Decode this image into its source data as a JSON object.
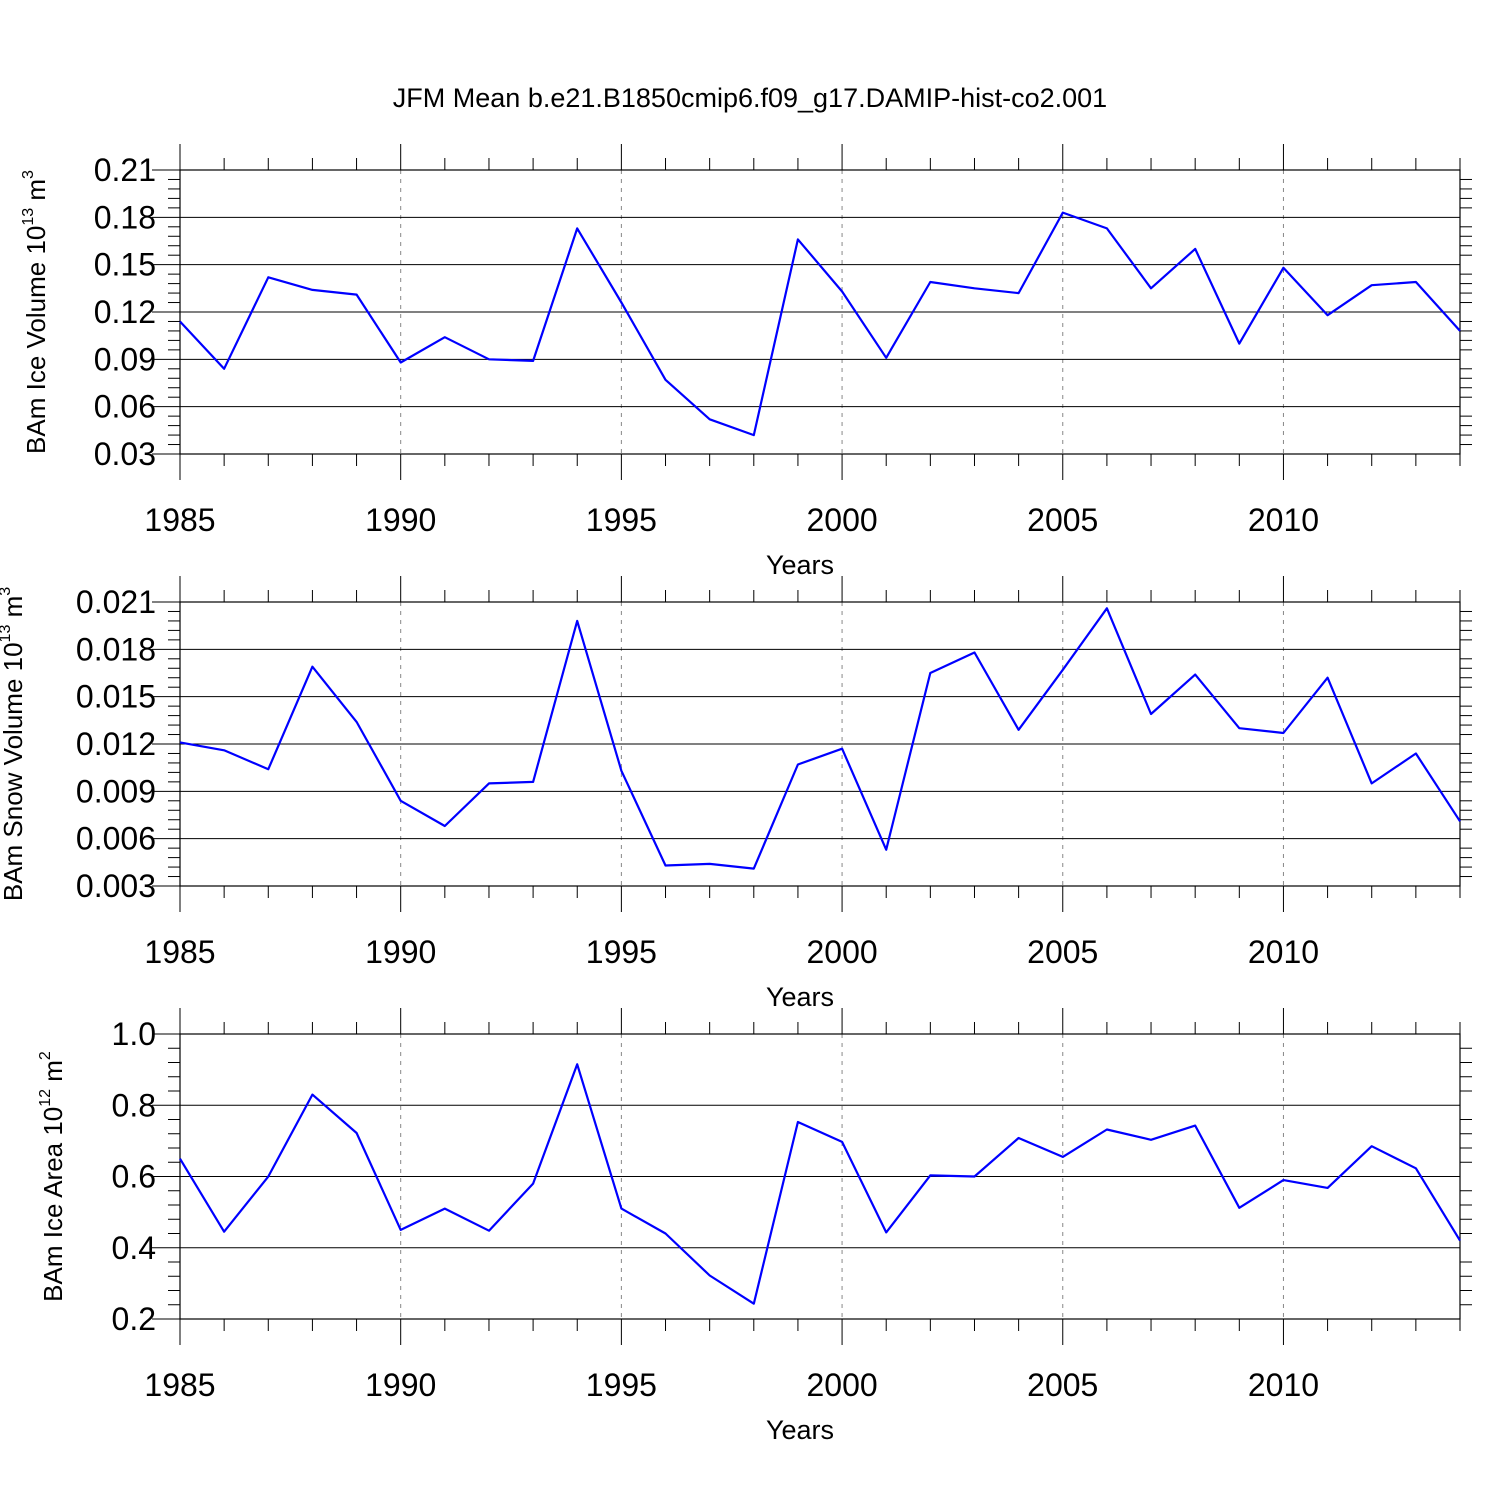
{
  "chart_data": {
    "type": "line",
    "title": "JFM Mean b.e21.B1850cmip6.f09_g17.DAMIP-hist-co2.001",
    "line_color": "#0000ff",
    "x": [
      1985,
      1986,
      1987,
      1988,
      1989,
      1990,
      1991,
      1992,
      1993,
      1994,
      1995,
      1996,
      1997,
      1998,
      1999,
      2000,
      2001,
      2002,
      2003,
      2004,
      2005,
      2006,
      2007,
      2008,
      2009,
      2010,
      2011,
      2012,
      2013,
      2014
    ],
    "xlim": [
      1985,
      2014
    ],
    "xticks": [
      1985,
      1990,
      1995,
      2000,
      2005,
      2010
    ],
    "xtick_labels": [
      "1985",
      "1990",
      "1995",
      "2000",
      "2005",
      "2010"
    ],
    "xlabel": "Years",
    "panels": [
      {
        "name": "ice-volume",
        "ylabel": {
          "base": "BAm Ice Volume 10",
          "exp": "13",
          "unit": " m",
          "unit_exp": "3"
        },
        "ylim": [
          0.03,
          0.21
        ],
        "yticks": [
          0.03,
          0.06,
          0.09,
          0.12,
          0.15,
          0.18,
          0.21
        ],
        "ytick_labels": [
          "0.03",
          "0.06",
          "0.09",
          "0.12",
          "0.15",
          "0.18",
          "0.21"
        ],
        "values": [
          0.114,
          0.084,
          0.142,
          0.134,
          0.131,
          0.088,
          0.104,
          0.09,
          0.089,
          0.173,
          0.126,
          0.077,
          0.052,
          0.042,
          0.166,
          0.133,
          0.091,
          0.139,
          0.135,
          0.132,
          0.183,
          0.173,
          0.135,
          0.16,
          0.1,
          0.148,
          0.118,
          0.137,
          0.139,
          0.108
        ]
      },
      {
        "name": "snow-volume",
        "ylabel": {
          "base": "BAm Snow Volume 10",
          "exp": "13",
          "unit": " m",
          "unit_exp": "3"
        },
        "ylim": [
          0.003,
          0.021
        ],
        "yticks": [
          0.003,
          0.006,
          0.009,
          0.012,
          0.015,
          0.018,
          0.021
        ],
        "ytick_labels": [
          "0.003",
          "0.006",
          "0.009",
          "0.012",
          "0.015",
          "0.018",
          "0.021"
        ],
        "values": [
          0.0121,
          0.0116,
          0.0104,
          0.0169,
          0.0134,
          0.0084,
          0.0068,
          0.0095,
          0.0096,
          0.0198,
          0.0103,
          0.0043,
          0.0044,
          0.0041,
          0.0107,
          0.0117,
          0.0053,
          0.0165,
          0.0178,
          0.0129,
          0.0167,
          0.0206,
          0.0139,
          0.0164,
          0.013,
          0.0127,
          0.0162,
          0.0095,
          0.0114,
          0.0071
        ]
      },
      {
        "name": "ice-area",
        "ylabel": {
          "base": "BAm Ice Area 10",
          "exp": "12",
          "unit": " m",
          "unit_exp": "2"
        },
        "ylim": [
          0.2,
          1.0
        ],
        "yticks": [
          0.2,
          0.4,
          0.6,
          0.8,
          1.0
        ],
        "ytick_labels": [
          "0.2",
          "0.4",
          "0.6",
          "0.8",
          "1.0"
        ],
        "values": [
          0.65,
          0.445,
          0.6,
          0.83,
          0.722,
          0.45,
          0.51,
          0.448,
          0.58,
          0.915,
          0.51,
          0.44,
          0.322,
          0.243,
          0.753,
          0.697,
          0.443,
          0.603,
          0.6,
          0.708,
          0.655,
          0.732,
          0.703,
          0.743,
          0.512,
          0.59,
          0.568,
          0.685,
          0.623,
          0.42
        ]
      }
    ]
  }
}
